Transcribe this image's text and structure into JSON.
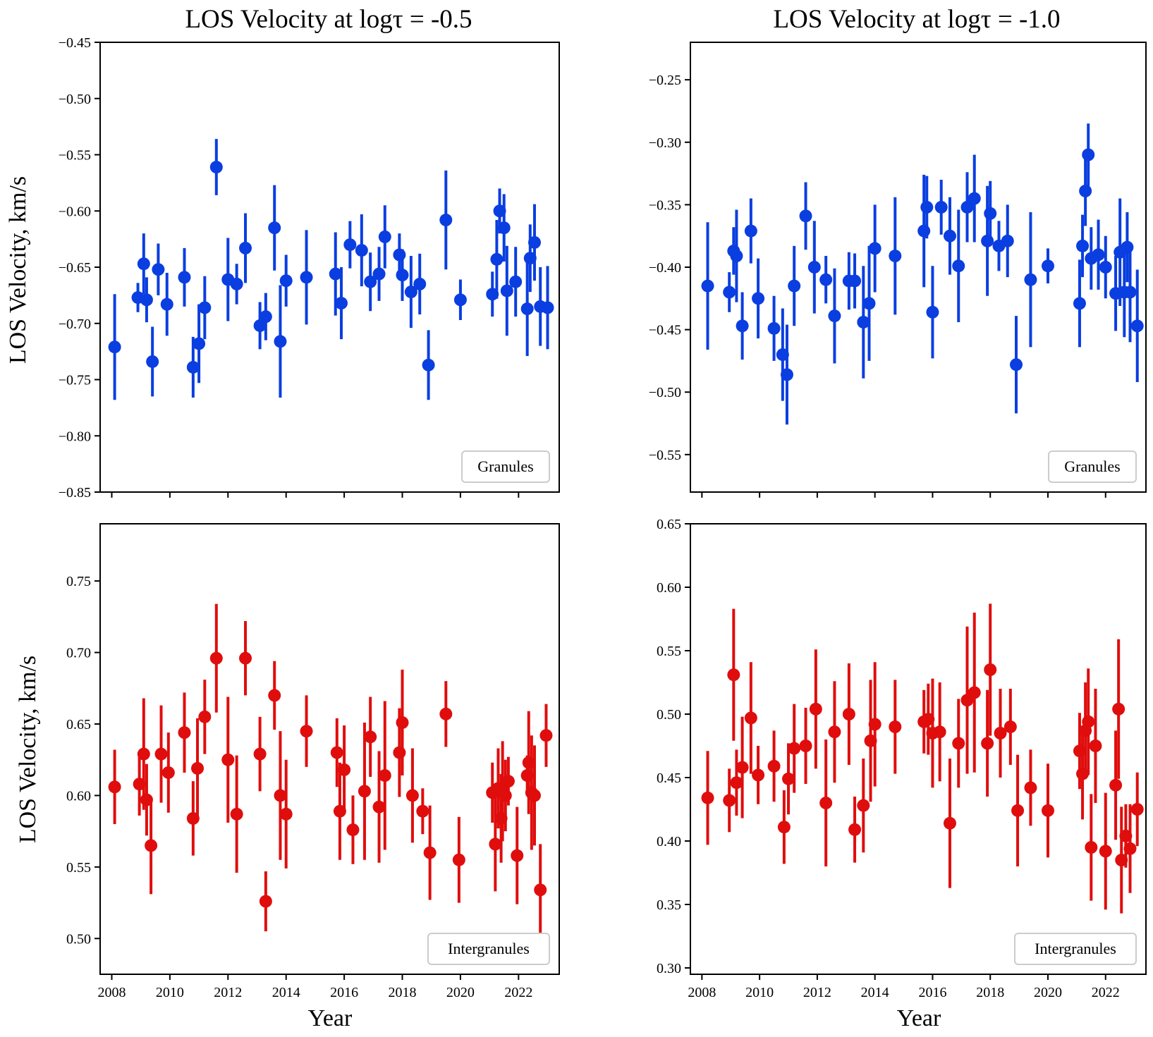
{
  "colors": {
    "granules": "#0a3ee0",
    "intergranules": "#e00d0d",
    "axes": "#000000",
    "legend_border": "#cccccc"
  },
  "chart_data": [
    {
      "type": "scatter",
      "title": "LOS Velocity at logτ = -0.5",
      "ylabel": "LOS Velocity, km/s",
      "xlabel": "",
      "legend": "Granules",
      "legend_loc": "lower-right",
      "xlim": [
        2007.6,
        2023.4
      ],
      "ylim": [
        -0.85,
        -0.45
      ],
      "xticks": [
        2008,
        2010,
        2012,
        2014,
        2016,
        2018,
        2020,
        2022
      ],
      "yticks": [
        -0.85,
        -0.8,
        -0.75,
        -0.7,
        -0.65,
        -0.6,
        -0.55,
        -0.5,
        -0.45
      ],
      "ytick_labels": [
        "−0.85",
        "−0.80",
        "−0.75",
        "−0.70",
        "−0.65",
        "−0.60",
        "−0.55",
        "−0.50",
        "−0.45"
      ],
      "show_xtick_labels": false,
      "grid": false,
      "points": [
        [
          2008.1,
          -0.721,
          0.047
        ],
        [
          2008.9,
          -0.677,
          0.013
        ],
        [
          2009.1,
          -0.647,
          0.027
        ],
        [
          2009.2,
          -0.679,
          0.02
        ],
        [
          2009.4,
          -0.734,
          0.031
        ],
        [
          2009.6,
          -0.652,
          0.023
        ],
        [
          2009.9,
          -0.683,
          0.028
        ],
        [
          2010.5,
          -0.659,
          0.026
        ],
        [
          2010.8,
          -0.739,
          0.027
        ],
        [
          2011.0,
          -0.718,
          0.035
        ],
        [
          2011.2,
          -0.686,
          0.028
        ],
        [
          2011.6,
          -0.561,
          0.025
        ],
        [
          2012.0,
          -0.661,
          0.037
        ],
        [
          2012.3,
          -0.665,
          0.018
        ],
        [
          2012.6,
          -0.633,
          0.031
        ],
        [
          2013.1,
          -0.702,
          0.021
        ],
        [
          2013.3,
          -0.694,
          0.021
        ],
        [
          2013.6,
          -0.615,
          0.038
        ],
        [
          2013.8,
          -0.716,
          0.05
        ],
        [
          2014.0,
          -0.662,
          0.023
        ],
        [
          2014.7,
          -0.659,
          0.042
        ],
        [
          2015.7,
          -0.656,
          0.037
        ],
        [
          2015.9,
          -0.682,
          0.032
        ],
        [
          2016.2,
          -0.63,
          0.021
        ],
        [
          2016.6,
          -0.635,
          0.032
        ],
        [
          2016.9,
          -0.663,
          0.026
        ],
        [
          2017.2,
          -0.656,
          0.024
        ],
        [
          2017.4,
          -0.623,
          0.028
        ],
        [
          2017.9,
          -0.639,
          0.019
        ],
        [
          2018.0,
          -0.657,
          0.023
        ],
        [
          2018.3,
          -0.672,
          0.032
        ],
        [
          2018.6,
          -0.665,
          0.027
        ],
        [
          2018.9,
          -0.737,
          0.031
        ],
        [
          2019.5,
          -0.608,
          0.044
        ],
        [
          2020.0,
          -0.679,
          0.018
        ],
        [
          2021.1,
          -0.674,
          0.02
        ],
        [
          2021.25,
          -0.643,
          0.035
        ],
        [
          2021.35,
          -0.6,
          0.02
        ],
        [
          2021.5,
          -0.615,
          0.03
        ],
        [
          2021.6,
          -0.671,
          0.04
        ],
        [
          2021.9,
          -0.663,
          0.031
        ],
        [
          2022.3,
          -0.687,
          0.042
        ],
        [
          2022.4,
          -0.642,
          0.03
        ],
        [
          2022.55,
          -0.628,
          0.034
        ],
        [
          2022.75,
          -0.685,
          0.035
        ],
        [
          2023.0,
          -0.686,
          0.037
        ]
      ]
    },
    {
      "type": "scatter",
      "title": "LOS Velocity at logτ = -1.0",
      "ylabel": "",
      "xlabel": "",
      "legend": "Granules",
      "legend_loc": "lower-right",
      "xlim": [
        2007.6,
        2023.4
      ],
      "ylim": [
        -0.58,
        -0.22
      ],
      "xticks": [
        2008,
        2010,
        2012,
        2014,
        2016,
        2018,
        2020,
        2022
      ],
      "yticks": [
        -0.55,
        -0.5,
        -0.45,
        -0.4,
        -0.35,
        -0.3,
        -0.25
      ],
      "ytick_labels": [
        "−0.55",
        "−0.50",
        "−0.45",
        "−0.40",
        "−0.35",
        "−0.30",
        "−0.25"
      ],
      "show_xtick_labels": false,
      "grid": false,
      "points": [
        [
          2008.2,
          -0.415,
          0.051
        ],
        [
          2008.95,
          -0.42,
          0.016
        ],
        [
          2009.1,
          -0.387,
          0.019
        ],
        [
          2009.2,
          -0.391,
          0.037
        ],
        [
          2009.4,
          -0.447,
          0.027
        ],
        [
          2009.7,
          -0.371,
          0.026
        ],
        [
          2009.95,
          -0.425,
          0.032
        ],
        [
          2010.5,
          -0.449,
          0.026
        ],
        [
          2010.8,
          -0.47,
          0.037
        ],
        [
          2010.95,
          -0.486,
          0.04
        ],
        [
          2011.2,
          -0.415,
          0.032
        ],
        [
          2011.6,
          -0.359,
          0.027
        ],
        [
          2011.9,
          -0.4,
          0.037
        ],
        [
          2012.3,
          -0.41,
          0.019
        ],
        [
          2012.6,
          -0.439,
          0.038
        ],
        [
          2013.1,
          -0.411,
          0.023
        ],
        [
          2013.3,
          -0.411,
          0.022
        ],
        [
          2013.6,
          -0.444,
          0.045
        ],
        [
          2013.8,
          -0.429,
          0.046
        ],
        [
          2014.0,
          -0.385,
          0.035
        ],
        [
          2014.7,
          -0.391,
          0.047
        ],
        [
          2015.7,
          -0.371,
          0.045
        ],
        [
          2015.8,
          -0.352,
          0.025
        ],
        [
          2016.0,
          -0.436,
          0.037
        ],
        [
          2016.3,
          -0.352,
          0.022
        ],
        [
          2016.6,
          -0.375,
          0.031
        ],
        [
          2016.9,
          -0.399,
          0.045
        ],
        [
          2017.2,
          -0.352,
          0.028
        ],
        [
          2017.45,
          -0.345,
          0.035
        ],
        [
          2017.9,
          -0.379,
          0.044
        ],
        [
          2018.0,
          -0.357,
          0.026
        ],
        [
          2018.3,
          -0.383,
          0.02
        ],
        [
          2018.6,
          -0.379,
          0.029
        ],
        [
          2018.9,
          -0.478,
          0.039
        ],
        [
          2019.4,
          -0.41,
          0.054
        ],
        [
          2020.0,
          -0.399,
          0.014
        ],
        [
          2021.1,
          -0.429,
          0.035
        ],
        [
          2021.2,
          -0.383,
          0.025
        ],
        [
          2021.3,
          -0.339,
          0.028
        ],
        [
          2021.4,
          -0.31,
          0.025
        ],
        [
          2021.5,
          -0.393,
          0.025
        ],
        [
          2021.75,
          -0.39,
          0.028
        ],
        [
          2022.0,
          -0.4,
          0.025
        ],
        [
          2022.35,
          -0.421,
          0.03
        ],
        [
          2022.5,
          -0.388,
          0.043
        ],
        [
          2022.65,
          -0.42,
          0.036
        ],
        [
          2022.75,
          -0.384,
          0.028
        ],
        [
          2022.85,
          -0.42,
          0.04
        ],
        [
          2023.1,
          -0.447,
          0.045
        ]
      ]
    },
    {
      "type": "scatter",
      "title": "",
      "ylabel": "LOS Velocity, km/s",
      "xlabel": "Year",
      "legend": "Intergranules",
      "legend_loc": "lower-right",
      "xlim": [
        2007.6,
        2023.4
      ],
      "ylim": [
        0.475,
        0.79
      ],
      "xticks": [
        2008,
        2010,
        2012,
        2014,
        2016,
        2018,
        2020,
        2022
      ],
      "yticks": [
        0.5,
        0.55,
        0.6,
        0.65,
        0.7,
        0.75
      ],
      "ytick_labels": [
        "0.50",
        "0.55",
        "0.60",
        "0.65",
        "0.70",
        "0.75"
      ],
      "xtick_labels": [
        "2008",
        "2010",
        "2012",
        "2014",
        "2016",
        "2018",
        "2020",
        "2022"
      ],
      "show_xtick_labels": true,
      "grid": false,
      "points": [
        [
          2008.1,
          0.606,
          0.026
        ],
        [
          2008.95,
          0.608,
          0.022
        ],
        [
          2009.1,
          0.629,
          0.039
        ],
        [
          2009.2,
          0.597,
          0.025
        ],
        [
          2009.35,
          0.565,
          0.034
        ],
        [
          2009.7,
          0.629,
          0.034
        ],
        [
          2009.95,
          0.616,
          0.028
        ],
        [
          2010.5,
          0.644,
          0.028
        ],
        [
          2010.8,
          0.584,
          0.026
        ],
        [
          2010.95,
          0.619,
          0.035
        ],
        [
          2011.2,
          0.655,
          0.026
        ],
        [
          2011.6,
          0.696,
          0.038
        ],
        [
          2012.0,
          0.625,
          0.044
        ],
        [
          2012.3,
          0.587,
          0.041
        ],
        [
          2012.6,
          0.696,
          0.026
        ],
        [
          2013.1,
          0.629,
          0.026
        ],
        [
          2013.3,
          0.526,
          0.021
        ],
        [
          2013.6,
          0.67,
          0.024
        ],
        [
          2013.8,
          0.6,
          0.045
        ],
        [
          2014.0,
          0.587,
          0.038
        ],
        [
          2014.7,
          0.645,
          0.025
        ],
        [
          2015.75,
          0.63,
          0.024
        ],
        [
          2015.85,
          0.589,
          0.034
        ],
        [
          2016.0,
          0.618,
          0.031
        ],
        [
          2016.3,
          0.576,
          0.024
        ],
        [
          2016.7,
          0.603,
          0.048
        ],
        [
          2016.9,
          0.641,
          0.028
        ],
        [
          2017.2,
          0.592,
          0.039
        ],
        [
          2017.4,
          0.614,
          0.052
        ],
        [
          2017.9,
          0.63,
          0.031
        ],
        [
          2018.0,
          0.651,
          0.037
        ],
        [
          2018.35,
          0.6,
          0.033
        ],
        [
          2018.7,
          0.589,
          0.016
        ],
        [
          2018.95,
          0.56,
          0.033
        ],
        [
          2019.5,
          0.657,
          0.023
        ],
        [
          2019.95,
          0.555,
          0.03
        ],
        [
          2021.1,
          0.602,
          0.021
        ],
        [
          2021.2,
          0.566,
          0.033
        ],
        [
          2021.3,
          0.605,
          0.028
        ],
        [
          2021.4,
          0.584,
          0.031
        ],
        [
          2021.45,
          0.603,
          0.035
        ],
        [
          2021.55,
          0.6,
          0.025
        ],
        [
          2021.65,
          0.61,
          0.017
        ],
        [
          2021.95,
          0.558,
          0.034
        ],
        [
          2022.3,
          0.614,
          0.014
        ],
        [
          2022.35,
          0.623,
          0.036
        ],
        [
          2022.45,
          0.602,
          0.04
        ],
        [
          2022.55,
          0.6,
          0.035
        ],
        [
          2022.75,
          0.534,
          0.032
        ],
        [
          2022.95,
          0.642,
          0.022
        ]
      ]
    },
    {
      "type": "scatter",
      "title": "",
      "ylabel": "",
      "xlabel": "Year",
      "legend": "Intergranules",
      "legend_loc": "lower-right",
      "xlim": [
        2007.6,
        2023.4
      ],
      "ylim": [
        0.295,
        0.65
      ],
      "xticks": [
        2008,
        2010,
        2012,
        2014,
        2016,
        2018,
        2020,
        2022
      ],
      "yticks": [
        0.3,
        0.35,
        0.4,
        0.45,
        0.5,
        0.55,
        0.6,
        0.65
      ],
      "ytick_labels": [
        "0.30",
        "0.35",
        "0.40",
        "0.45",
        "0.50",
        "0.55",
        "0.60",
        "0.65"
      ],
      "xtick_labels": [
        "2008",
        "2010",
        "2012",
        "2014",
        "2016",
        "2018",
        "2020",
        "2022"
      ],
      "show_xtick_labels": true,
      "grid": false,
      "points": [
        [
          2008.2,
          0.434,
          0.037
        ],
        [
          2008.95,
          0.432,
          0.025
        ],
        [
          2009.1,
          0.531,
          0.052
        ],
        [
          2009.2,
          0.446,
          0.026
        ],
        [
          2009.4,
          0.458,
          0.04
        ],
        [
          2009.7,
          0.497,
          0.044
        ],
        [
          2009.95,
          0.452,
          0.023
        ],
        [
          2010.5,
          0.459,
          0.028
        ],
        [
          2010.85,
          0.411,
          0.029
        ],
        [
          2011.0,
          0.449,
          0.028
        ],
        [
          2011.2,
          0.473,
          0.035
        ],
        [
          2011.6,
          0.475,
          0.03
        ],
        [
          2011.95,
          0.504,
          0.047
        ],
        [
          2012.3,
          0.43,
          0.05
        ],
        [
          2012.6,
          0.486,
          0.04
        ],
        [
          2013.1,
          0.5,
          0.04
        ],
        [
          2013.3,
          0.409,
          0.026
        ],
        [
          2013.6,
          0.428,
          0.037
        ],
        [
          2013.85,
          0.479,
          0.048
        ],
        [
          2014.0,
          0.492,
          0.049
        ],
        [
          2014.7,
          0.49,
          0.037
        ],
        [
          2015.7,
          0.494,
          0.025
        ],
        [
          2015.85,
          0.496,
          0.028
        ],
        [
          2016.0,
          0.485,
          0.043
        ],
        [
          2016.25,
          0.486,
          0.039
        ],
        [
          2016.6,
          0.414,
          0.051
        ],
        [
          2016.9,
          0.477,
          0.035
        ],
        [
          2017.2,
          0.511,
          0.058
        ],
        [
          2017.45,
          0.517,
          0.063
        ],
        [
          2017.9,
          0.477,
          0.042
        ],
        [
          2018.0,
          0.535,
          0.052
        ],
        [
          2018.35,
          0.485,
          0.035
        ],
        [
          2018.7,
          0.49,
          0.03
        ],
        [
          2018.95,
          0.424,
          0.044
        ],
        [
          2019.4,
          0.442,
          0.03
        ],
        [
          2020.0,
          0.424,
          0.037
        ],
        [
          2021.1,
          0.471,
          0.03
        ],
        [
          2021.2,
          0.453,
          0.036
        ],
        [
          2021.3,
          0.487,
          0.038
        ],
        [
          2021.4,
          0.494,
          0.042
        ],
        [
          2021.5,
          0.395,
          0.042
        ],
        [
          2021.65,
          0.475,
          0.045
        ],
        [
          2022.0,
          0.392,
          0.046
        ],
        [
          2022.35,
          0.444,
          0.043
        ],
        [
          2022.45,
          0.504,
          0.055
        ],
        [
          2022.55,
          0.385,
          0.042
        ],
        [
          2022.7,
          0.404,
          0.025
        ],
        [
          2022.85,
          0.394,
          0.035
        ],
        [
          2023.1,
          0.425,
          0.029
        ]
      ]
    }
  ]
}
